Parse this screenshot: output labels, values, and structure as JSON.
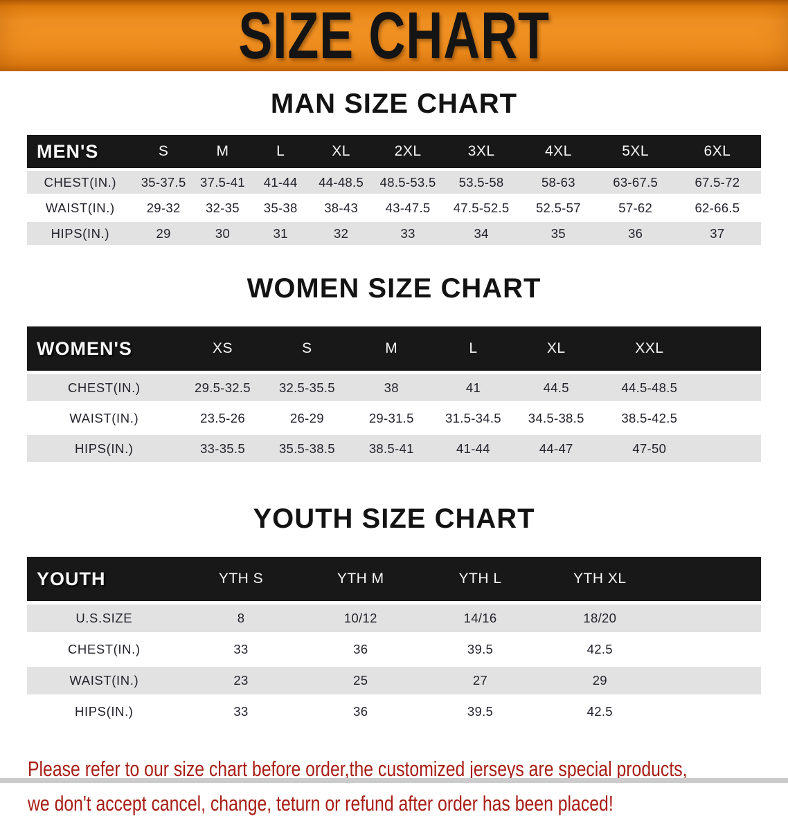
{
  "banner": {
    "title": "SIZE CHART"
  },
  "theme": {
    "banner_orange": "#ee8d1e",
    "header_band_black": "#181818",
    "stripe_gray": "#e2e2e2",
    "disclaimer_red": "#a81d15"
  },
  "sections": [
    {
      "heading": "MAN SIZE CHART",
      "label": "MEN'S",
      "columns": [
        "S",
        "M",
        "L",
        "XL",
        "2XL",
        "3XL",
        "4XL",
        "5XL",
        "6XL"
      ],
      "rows": [
        {
          "label": "CHEST(IN.)",
          "values": [
            "35-37.5",
            "37.5-41",
            "41-44",
            "44-48.5",
            "48.5-53.5",
            "53.5-58",
            "58-63",
            "63-67.5",
            "67.5-72"
          ]
        },
        {
          "label": "WAIST(IN.)",
          "values": [
            "29-32",
            "32-35",
            "35-38",
            "38-43",
            "43-47.5",
            "47.5-52.5",
            "52.5-57",
            "57-62",
            "62-66.5"
          ]
        },
        {
          "label": "HIPS(IN.)",
          "values": [
            "29",
            "30",
            "31",
            "32",
            "33",
            "34",
            "35",
            "36",
            "37"
          ]
        }
      ]
    },
    {
      "heading": "WOMEN SIZE CHART",
      "label": "WOMEN'S",
      "columns": [
        "XS",
        "S",
        "M",
        "L",
        "XL",
        "XXL"
      ],
      "rows": [
        {
          "label": "CHEST(IN.)",
          "values": [
            "29.5-32.5",
            "32.5-35.5",
            "38",
            "41",
            "44.5",
            "44.5-48.5"
          ]
        },
        {
          "label": "WAIST(IN.)",
          "values": [
            "23.5-26",
            "26-29",
            "29-31.5",
            "31.5-34.5",
            "34.5-38.5",
            "38.5-42.5"
          ]
        },
        {
          "label": "HIPS(IN.)",
          "values": [
            "33-35.5",
            "35.5-38.5",
            "38.5-41",
            "41-44",
            "44-47",
            "47-50"
          ]
        }
      ]
    },
    {
      "heading": "YOUTH SIZE CHART",
      "label": "YOUTH",
      "columns": [
        "YTH S",
        "YTH M",
        "YTH L",
        "YTH XL"
      ],
      "rows": [
        {
          "label": "U.S.SIZE",
          "values": [
            "8",
            "10/12",
            "14/16",
            "18/20"
          ]
        },
        {
          "label": "CHEST(IN.)",
          "values": [
            "33",
            "36",
            "39.5",
            "42.5"
          ]
        },
        {
          "label": "WAIST(IN.)",
          "values": [
            "23",
            "25",
            "27",
            "29"
          ]
        },
        {
          "label": "HIPS(IN.)",
          "values": [
            "33",
            "36",
            "39.5",
            "42.5"
          ]
        }
      ]
    }
  ],
  "disclaimer": {
    "line1": "Please refer to our size chart before order,the customized jerseys are special products,",
    "line2": "we don't accept cancel, change, teturn or refund after order has been placed!"
  }
}
